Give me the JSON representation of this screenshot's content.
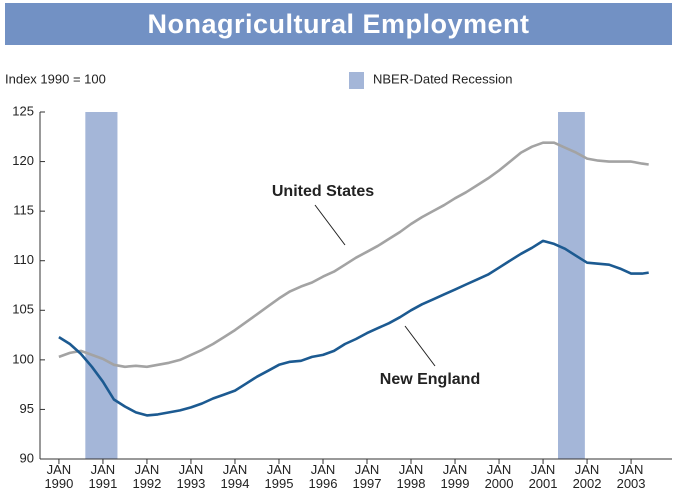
{
  "chart_data": {
    "type": "line",
    "title": "Nonagricultural Employment",
    "y_axis_label": "Index 1990 = 100",
    "legend_recession": "NBER-Dated Recession",
    "recession_color": "#a4b6d8",
    "recessions": [
      [
        1990.6,
        1991.33
      ],
      [
        2001.34,
        2001.95
      ]
    ],
    "x": [
      1990,
      1990.25,
      1990.5,
      1990.75,
      1991,
      1991.25,
      1991.5,
      1991.75,
      1992,
      1992.25,
      1992.5,
      1992.75,
      1993,
      1993.25,
      1993.5,
      1993.75,
      1994,
      1994.25,
      1994.5,
      1994.75,
      1995,
      1995.25,
      1995.5,
      1995.75,
      1996,
      1996.25,
      1996.5,
      1996.75,
      1997,
      1997.25,
      1997.5,
      1997.75,
      1998,
      1998.25,
      1998.5,
      1998.75,
      1999,
      1999.25,
      1999.5,
      1999.75,
      2000,
      2000.25,
      2000.5,
      2000.75,
      2001,
      2001.25,
      2001.5,
      2001.75,
      2002,
      2002.25,
      2002.5,
      2002.75,
      2003,
      2003.25,
      2003.4
    ],
    "series": [
      {
        "name": "United States",
        "color": "#a3a3a3",
        "values": [
          100.3,
          100.7,
          100.9,
          100.5,
          100.1,
          99.5,
          99.3,
          99.4,
          99.3,
          99.5,
          99.7,
          100.0,
          100.5,
          101.0,
          101.6,
          102.3,
          103.0,
          103.8,
          104.6,
          105.4,
          106.2,
          106.9,
          107.4,
          107.8,
          108.4,
          108.9,
          109.6,
          110.3,
          110.9,
          111.5,
          112.2,
          112.9,
          113.7,
          114.4,
          115.0,
          115.6,
          116.3,
          116.9,
          117.6,
          118.3,
          119.1,
          120.0,
          120.9,
          121.5,
          121.9,
          121.9,
          121.4,
          120.9,
          120.3,
          120.1,
          120.0,
          120.0,
          120.0,
          119.8,
          119.7
        ]
      },
      {
        "name": "New England",
        "color": "#1c5a91",
        "values": [
          102.3,
          101.6,
          100.6,
          99.3,
          97.8,
          96.0,
          95.3,
          94.7,
          94.4,
          94.5,
          94.7,
          94.9,
          95.2,
          95.6,
          96.1,
          96.5,
          96.9,
          97.6,
          98.3,
          98.9,
          99.5,
          99.8,
          99.9,
          100.3,
          100.5,
          100.9,
          101.6,
          102.1,
          102.7,
          103.2,
          103.7,
          104.3,
          105.0,
          105.6,
          106.1,
          106.6,
          107.1,
          107.6,
          108.1,
          108.6,
          109.3,
          110.0,
          110.7,
          111.3,
          112.0,
          111.7,
          111.2,
          110.5,
          109.8,
          109.7,
          109.6,
          109.2,
          108.7,
          108.7,
          108.8
        ]
      }
    ],
    "xlim": [
      1989.57,
      2003.93
    ],
    "xticks": [
      {
        "value": 1990,
        "label": "JAN 1990"
      },
      {
        "value": 1991,
        "label": "JAN 1991"
      },
      {
        "value": 1992,
        "label": "JAN 1992"
      },
      {
        "value": 1993,
        "label": "JAN 1993"
      },
      {
        "value": 1994,
        "label": "JAN 1994"
      },
      {
        "value": 1995,
        "label": "JAN 1995"
      },
      {
        "value": 1996,
        "label": "JAN 1996"
      },
      {
        "value": 1997,
        "label": "JAN 1997"
      },
      {
        "value": 1998,
        "label": "JAN 1998"
      },
      {
        "value": 1999,
        "label": "JAN 1999"
      },
      {
        "value": 2000,
        "label": "JAN 2000"
      },
      {
        "value": 2001,
        "label": "JAN 2001"
      },
      {
        "value": 2002,
        "label": "JAN 2002"
      },
      {
        "value": 2003,
        "label": "JAN 2003"
      }
    ],
    "ylim": [
      90,
      125
    ],
    "yticks": [
      90,
      95,
      100,
      105,
      110,
      115,
      120,
      125
    ]
  }
}
